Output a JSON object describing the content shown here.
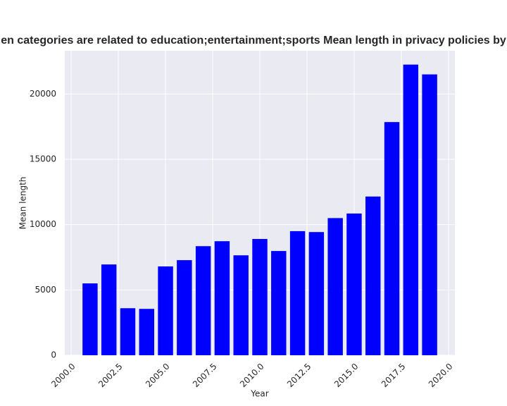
{
  "chart_data": {
    "type": "bar",
    "title": "en categories are related to education;entertainment;sports Mean length in privacy policies by",
    "xlabel": "Year",
    "ylabel": "Mean length",
    "x": [
      2001,
      2002,
      2003,
      2004,
      2005,
      2006,
      2007,
      2008,
      2009,
      2010,
      2011,
      2012,
      2013,
      2014,
      2015,
      2016,
      2017,
      2018,
      2019
    ],
    "values": [
      5500,
      6950,
      3600,
      3550,
      6800,
      7280,
      8350,
      8730,
      7650,
      8900,
      7980,
      9500,
      9430,
      10500,
      10850,
      12150,
      17850,
      22250,
      21500
    ],
    "color": "#0000ff",
    "xlim": [
      1999.66,
      2020.34
    ],
    "xticks": [
      {
        "value": 2000,
        "label": "2000.0"
      },
      {
        "value": 2002.5,
        "label": "2002.5"
      },
      {
        "value": 2005,
        "label": "2005.0"
      },
      {
        "value": 2007.5,
        "label": "2007.5"
      },
      {
        "value": 2010,
        "label": "2010.0"
      },
      {
        "value": 2012.5,
        "label": "2012.5"
      },
      {
        "value": 2015,
        "label": "2015.0"
      },
      {
        "value": 2017.5,
        "label": "2017.5"
      },
      {
        "value": 2020,
        "label": "2020.0"
      }
    ],
    "ylim": [
      0,
      23310
    ],
    "yticks": [
      0,
      5000,
      10000,
      15000,
      20000
    ],
    "grid": true
  }
}
